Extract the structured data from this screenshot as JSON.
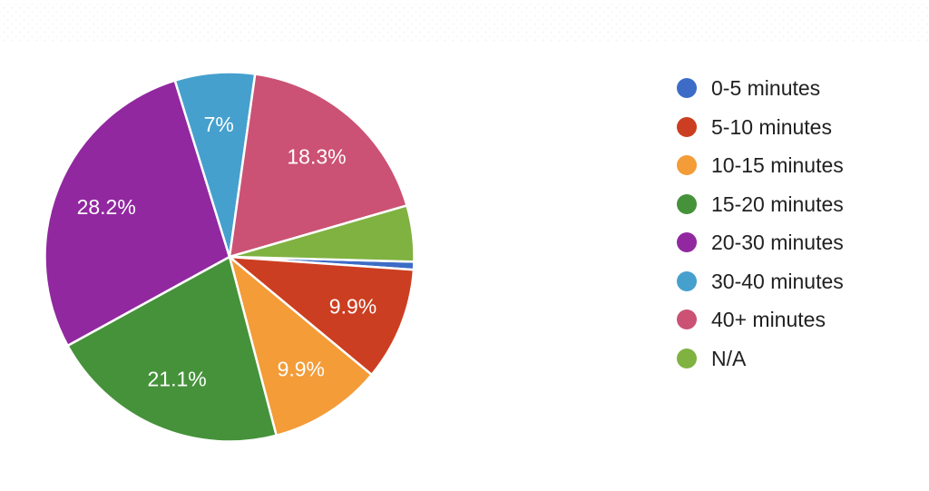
{
  "chart_data": {
    "type": "pie",
    "title": "",
    "legend_position": "right",
    "start_angle_deg": 91.5,
    "slice_label_color": "#ffffff",
    "legend_text_color": "#212121",
    "slices": [
      {
        "label": "0-5 minutes",
        "value": 0.7,
        "percent_label": "",
        "color": "#3C6CC6"
      },
      {
        "label": "5-10 minutes",
        "value": 9.9,
        "percent_label": "9.9%",
        "color": "#CC3E21"
      },
      {
        "label": "10-15 minutes",
        "value": 9.9,
        "percent_label": "9.9%",
        "color": "#F39C38"
      },
      {
        "label": "15-20 minutes",
        "value": 21.1,
        "percent_label": "21.1%",
        "color": "#45923A"
      },
      {
        "label": "20-30 minutes",
        "value": 28.2,
        "percent_label": "28.2%",
        "color": "#9128A0"
      },
      {
        "label": "30-40 minutes",
        "value": 7,
        "percent_label": "7%",
        "color": "#45A0CD"
      },
      {
        "label": "40+ minutes",
        "value": 18.3,
        "percent_label": "18.3%",
        "color": "#CB5274"
      },
      {
        "label": "N/A",
        "value": 4.9,
        "percent_label": "",
        "color": "#7FB241"
      }
    ]
  }
}
